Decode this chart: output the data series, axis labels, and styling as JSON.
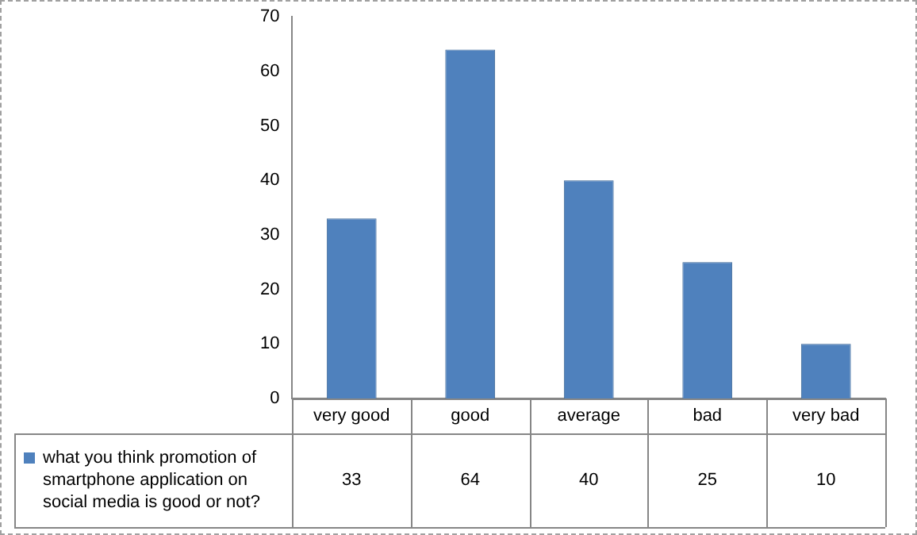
{
  "chart_data": {
    "type": "bar",
    "categories": [
      "very good",
      "good",
      "average",
      "bad",
      "very bad"
    ],
    "series": [
      {
        "name": "what you think promotion of smartphone application on social media is good or not?",
        "color": "#4f81bd",
        "values": [
          33,
          64,
          40,
          25,
          10
        ]
      }
    ],
    "ylim": [
      0,
      70
    ],
    "yticks": [
      0,
      10,
      20,
      30,
      40,
      50,
      60,
      70
    ],
    "grid": false,
    "legend": "bottom left",
    "data_labels": true
  }
}
